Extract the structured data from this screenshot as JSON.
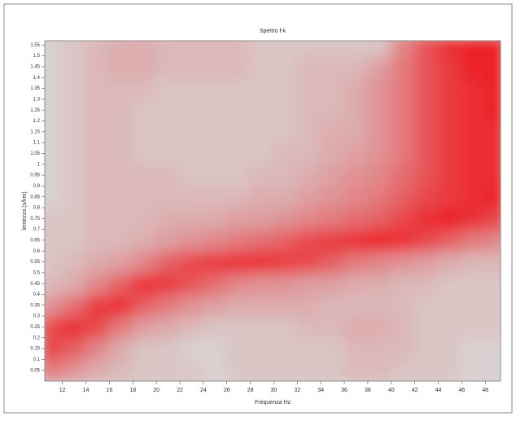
{
  "chart_data": {
    "type": "heatmap",
    "title": "Spettro f-k",
    "x_label": "Frequenza Hz",
    "y_label": "lentezza (s/km)",
    "x": [
      11,
      13,
      15,
      17,
      19,
      21,
      23,
      25,
      27,
      29,
      31,
      33,
      35,
      37,
      39,
      41,
      43,
      45,
      47,
      49
    ],
    "y": [
      0.05,
      0.15,
      0.25,
      0.35,
      0.45,
      0.55,
      0.65,
      0.75,
      0.85,
      0.95,
      1.05,
      1.15,
      1.25,
      1.35,
      1.45,
      1.55
    ],
    "z": [
      [
        0.6,
        0.5,
        0.4,
        0.35,
        0.3,
        0.3,
        0.3,
        0.25,
        0.3,
        0.3,
        0.3,
        0.3,
        0.3,
        0.35,
        0.35,
        0.3,
        0.3,
        0.3,
        0.25,
        0.25
      ],
      [
        0.8,
        0.7,
        0.55,
        0.4,
        0.3,
        0.3,
        0.25,
        0.25,
        0.3,
        0.3,
        0.3,
        0.3,
        0.3,
        0.35,
        0.35,
        0.35,
        0.3,
        0.3,
        0.25,
        0.25
      ],
      [
        0.8,
        0.9,
        0.8,
        0.6,
        0.45,
        0.4,
        0.35,
        0.3,
        0.3,
        0.3,
        0.3,
        0.35,
        0.35,
        0.4,
        0.4,
        0.35,
        0.3,
        0.3,
        0.3,
        0.3
      ],
      [
        0.5,
        0.65,
        0.85,
        0.9,
        0.7,
        0.6,
        0.5,
        0.45,
        0.4,
        0.4,
        0.4,
        0.4,
        0.35,
        0.35,
        0.35,
        0.35,
        0.3,
        0.3,
        0.3,
        0.3
      ],
      [
        0.35,
        0.4,
        0.55,
        0.7,
        0.9,
        0.85,
        0.75,
        0.65,
        0.55,
        0.5,
        0.5,
        0.45,
        0.45,
        0.4,
        0.4,
        0.35,
        0.35,
        0.3,
        0.3,
        0.3
      ],
      [
        0.3,
        0.35,
        0.4,
        0.45,
        0.55,
        0.7,
        0.8,
        0.85,
        0.9,
        0.9,
        0.85,
        0.8,
        0.7,
        0.6,
        0.55,
        0.5,
        0.45,
        0.4,
        0.35,
        0.35
      ],
      [
        0.3,
        0.3,
        0.35,
        0.35,
        0.4,
        0.45,
        0.5,
        0.55,
        0.6,
        0.65,
        0.7,
        0.8,
        0.85,
        0.9,
        0.95,
        0.9,
        0.8,
        0.7,
        0.6,
        0.55
      ],
      [
        0.3,
        0.3,
        0.35,
        0.35,
        0.35,
        0.4,
        0.4,
        0.4,
        0.45,
        0.45,
        0.5,
        0.55,
        0.6,
        0.65,
        0.7,
        0.8,
        0.9,
        0.95,
        0.9,
        0.8
      ],
      [
        0.25,
        0.3,
        0.35,
        0.35,
        0.35,
        0.35,
        0.35,
        0.35,
        0.35,
        0.4,
        0.4,
        0.45,
        0.5,
        0.55,
        0.6,
        0.7,
        0.8,
        0.85,
        0.9,
        0.95
      ],
      [
        0.25,
        0.3,
        0.35,
        0.35,
        0.35,
        0.35,
        0.3,
        0.3,
        0.3,
        0.35,
        0.35,
        0.4,
        0.45,
        0.5,
        0.55,
        0.65,
        0.75,
        0.85,
        0.9,
        0.9
      ],
      [
        0.25,
        0.3,
        0.35,
        0.35,
        0.3,
        0.3,
        0.3,
        0.3,
        0.3,
        0.3,
        0.35,
        0.35,
        0.4,
        0.45,
        0.5,
        0.6,
        0.75,
        0.85,
        0.9,
        0.9
      ],
      [
        0.25,
        0.3,
        0.35,
        0.35,
        0.3,
        0.3,
        0.3,
        0.3,
        0.3,
        0.3,
        0.3,
        0.35,
        0.4,
        0.4,
        0.5,
        0.6,
        0.75,
        0.85,
        0.9,
        0.9
      ],
      [
        0.25,
        0.3,
        0.35,
        0.35,
        0.3,
        0.3,
        0.3,
        0.3,
        0.3,
        0.3,
        0.3,
        0.35,
        0.35,
        0.4,
        0.5,
        0.6,
        0.75,
        0.85,
        0.9,
        0.95
      ],
      [
        0.25,
        0.3,
        0.35,
        0.35,
        0.35,
        0.3,
        0.3,
        0.3,
        0.3,
        0.3,
        0.3,
        0.35,
        0.35,
        0.4,
        0.5,
        0.6,
        0.75,
        0.85,
        0.9,
        0.95
      ],
      [
        0.25,
        0.3,
        0.35,
        0.4,
        0.4,
        0.35,
        0.35,
        0.35,
        0.35,
        0.3,
        0.3,
        0.35,
        0.35,
        0.35,
        0.45,
        0.6,
        0.75,
        0.85,
        0.95,
        0.95
      ],
      [
        0.25,
        0.3,
        0.35,
        0.4,
        0.4,
        0.35,
        0.35,
        0.35,
        0.35,
        0.3,
        0.3,
        0.3,
        0.3,
        0.3,
        0.3,
        0.55,
        0.75,
        0.9,
        0.95,
        0.95
      ]
    ],
    "colors": [
      "#d9d1d1",
      "#ec2228"
    ],
    "xlim": [
      10.5,
      49.3
    ],
    "ylim": [
      0,
      1.57
    ],
    "xticks": [
      12,
      14,
      16,
      18,
      20,
      22,
      24,
      26,
      28,
      30,
      32,
      34,
      36,
      38,
      40,
      42,
      44,
      46,
      48
    ],
    "yticks": [
      0.05,
      0.1,
      0.15,
      0.2,
      0.25,
      0.3,
      0.35,
      0.4,
      0.45,
      0.5,
      0.55,
      0.6,
      0.65,
      0.7,
      0.75,
      0.8,
      0.85,
      0.9,
      0.95,
      1,
      1.05,
      1.1,
      1.15,
      1.2,
      1.25,
      1.3,
      1.35,
      1.4,
      1.45,
      1.5,
      1.55
    ]
  }
}
